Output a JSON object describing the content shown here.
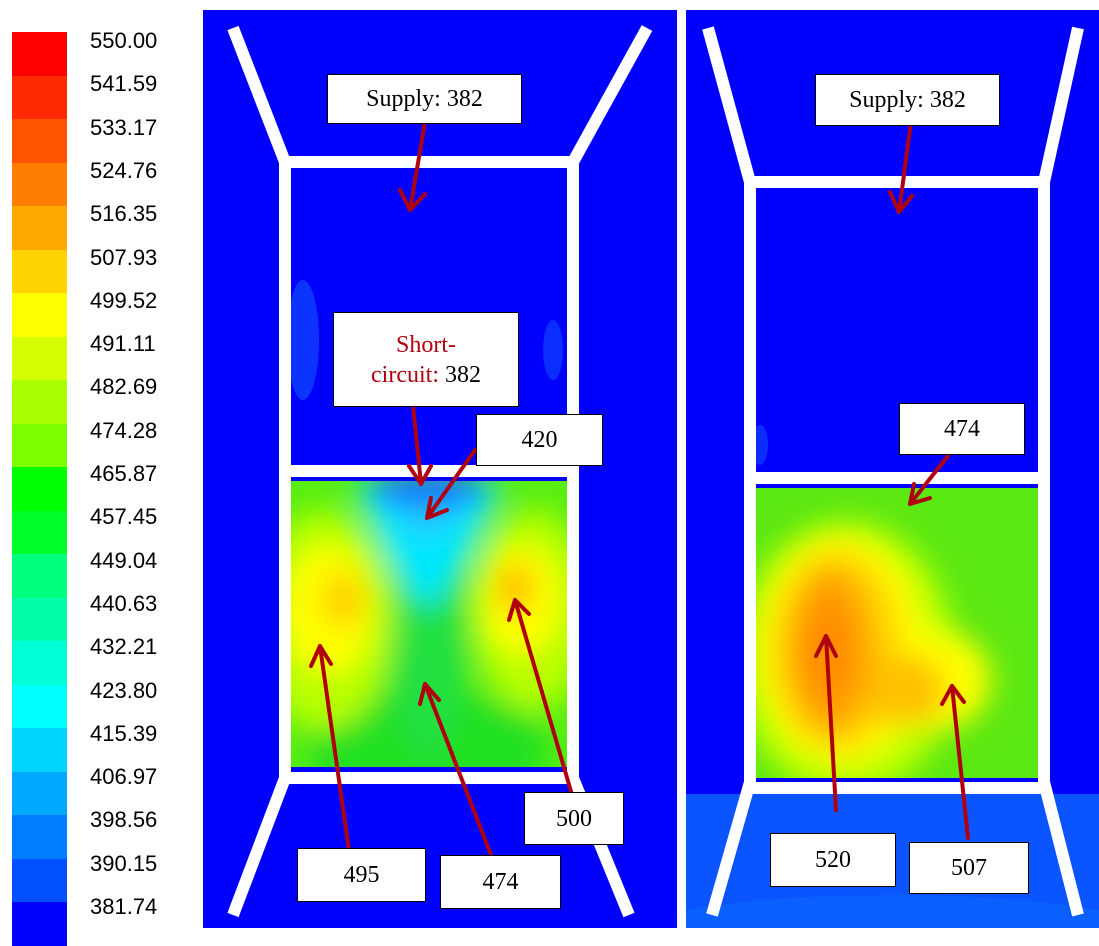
{
  "colorbar": {
    "ticks": [
      "550.00",
      "541.59",
      "533.17",
      "524.76",
      "516.35",
      "507.93",
      "499.52",
      "491.11",
      "482.69",
      "474.28",
      "465.87",
      "457.45",
      "449.04",
      "440.63",
      "432.21",
      "423.80",
      "415.39",
      "406.97",
      "398.56",
      "390.15",
      "381.74"
    ],
    "colors": [
      "#ff0000",
      "#ff2a00",
      "#ff5500",
      "#ff7d00",
      "#ffa800",
      "#ffd400",
      "#ffff00",
      "#d4ff00",
      "#a8ff00",
      "#7dff00",
      "#00ff00",
      "#00ff2a",
      "#00ff7d",
      "#00ffa8",
      "#00ffd4",
      "#00ffff",
      "#00d4ff",
      "#00a8ff",
      "#007dff",
      "#0050ff",
      "#0000ff"
    ]
  },
  "left_panel": {
    "supply_label": "Supply: 382",
    "short_circuit_line1": "Short-",
    "short_circuit_line2_prefix": "circuit:",
    "short_circuit_value": " 382",
    "callouts": [
      "420",
      "495",
      "474",
      "500"
    ]
  },
  "right_panel": {
    "supply_label": "Supply: 382",
    "callouts": [
      "474",
      "520",
      "507"
    ]
  },
  "colors": {
    "background": "#0000ff",
    "arrow": "#b00010",
    "frame": "#ffffff"
  }
}
